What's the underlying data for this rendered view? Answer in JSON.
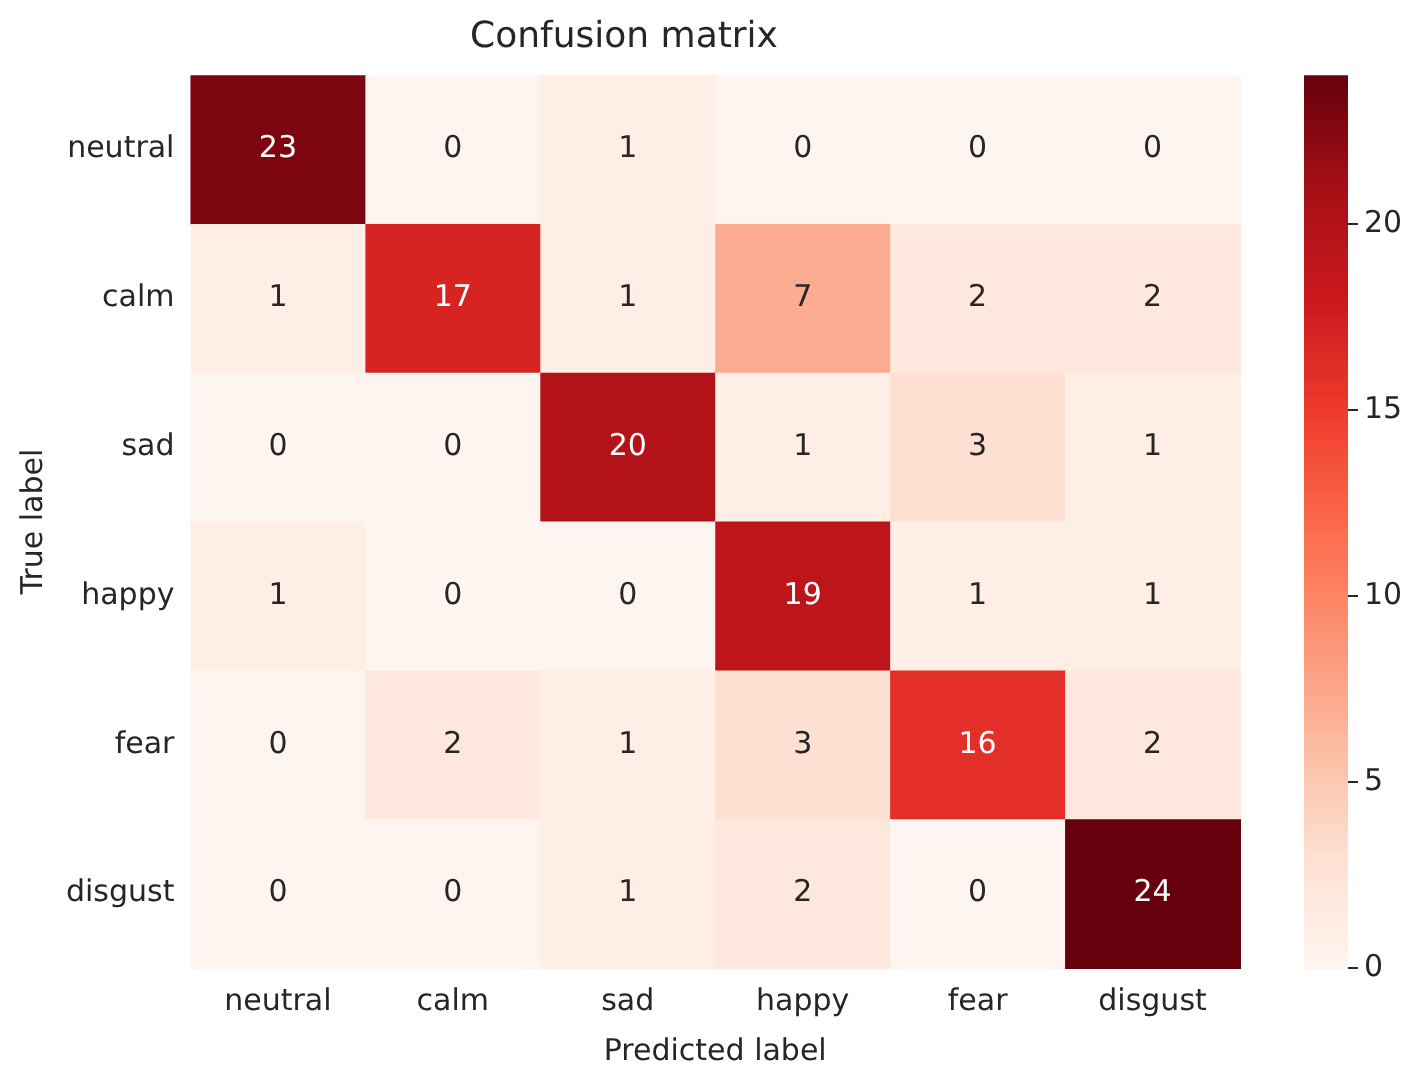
{
  "chart_data": {
    "type": "heatmap",
    "title": "Confusion matrix",
    "xlabel": "Predicted label",
    "ylabel": "True label",
    "categories": [
      "neutral",
      "calm",
      "sad",
      "happy",
      "fear",
      "disgust"
    ],
    "y_categories": [
      "neutral",
      "calm",
      "sad",
      "happy",
      "fear",
      "disgust"
    ],
    "cells": [
      [
        23,
        0,
        1,
        0,
        0,
        0
      ],
      [
        1,
        17,
        1,
        7,
        2,
        2
      ],
      [
        0,
        0,
        20,
        1,
        3,
        1
      ],
      [
        1,
        0,
        0,
        19,
        1,
        1
      ],
      [
        0,
        2,
        1,
        3,
        16,
        2
      ],
      [
        0,
        0,
        1,
        2,
        0,
        24
      ]
    ],
    "clim": [
      0,
      24
    ],
    "cticks": [
      0,
      5,
      10,
      15,
      20
    ],
    "data_labels": true
  }
}
